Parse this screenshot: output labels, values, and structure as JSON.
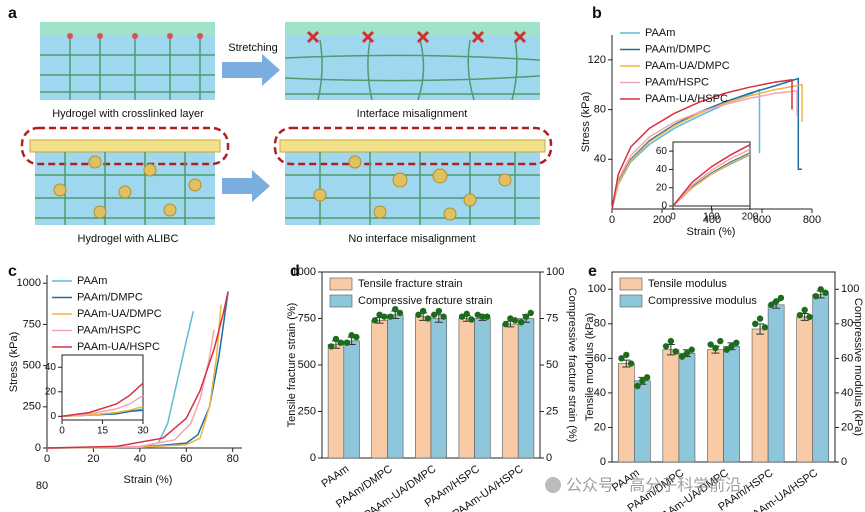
{
  "panel_a": {
    "panel": "a",
    "labels": [
      "Hydrogel with crosslinked layer",
      "Stretching",
      "Interface misalignment",
      "Hydrogel with ALIBC",
      "No interface misalignment"
    ]
  },
  "watermark": "公众号 · 高分子科学前沿",
  "chart_data": [
    {
      "type": "line",
      "panel": "b",
      "x_label": "Strain (%)",
      "y_label": "Stress (kPa)",
      "xlim": [
        0,
        800
      ],
      "xticks": [
        0,
        200,
        400,
        600,
        800
      ],
      "ylim": [
        0,
        140
      ],
      "yticks": [
        40,
        80,
        120
      ],
      "series": [
        {
          "name": "PAAm",
          "color": "#5bbcd6",
          "x": [
            0,
            25,
            75,
            150,
            250,
            350,
            450,
            550,
            590,
            590
          ],
          "y": [
            0,
            20,
            38,
            52,
            65,
            75,
            84,
            92,
            96,
            45
          ]
        },
        {
          "name": "PAAm/DMPC",
          "color": "#1f6ea6",
          "x": [
            0,
            25,
            75,
            150,
            250,
            350,
            450,
            550,
            650,
            745,
            745,
            760
          ],
          "y": [
            0,
            22,
            40,
            55,
            68,
            78,
            86,
            93,
            99,
            105,
            32,
            32
          ]
        },
        {
          "name": "PAAm-UA/DMPC",
          "color": "#f2b440",
          "x": [
            0,
            25,
            75,
            150,
            250,
            350,
            450,
            550,
            650,
            760,
            760
          ],
          "y": [
            0,
            21,
            39,
            54,
            67,
            77,
            85,
            91,
            96,
            100,
            70
          ]
        },
        {
          "name": "PAAm/HSPC",
          "color": "#f4a6b8",
          "x": [
            0,
            25,
            75,
            150,
            250,
            350,
            450,
            550,
            650,
            740,
            740
          ],
          "y": [
            0,
            24,
            43,
            58,
            70,
            78,
            84,
            89,
            93,
            95,
            75
          ]
        },
        {
          "name": "PAAm-UA/HSPC",
          "color": "#d8303e",
          "x": [
            0,
            25,
            75,
            150,
            250,
            350,
            450,
            550,
            650,
            720,
            720
          ],
          "y": [
            0,
            28,
            50,
            65,
            77,
            86,
            93,
            98,
            102,
            104,
            80
          ]
        }
      ],
      "inset": {
        "xlim": [
          0,
          200
        ],
        "xticks": [
          0,
          100,
          200
        ],
        "ylim": [
          0,
          70
        ],
        "yticks": [
          0,
          20,
          40,
          60
        ],
        "series": [
          {
            "color": "#5bbcd6",
            "x": [
              0,
              50,
              100,
              150,
              200
            ],
            "y": [
              0,
              20,
              35,
              46,
              56
            ]
          },
          {
            "color": "#1f6ea6",
            "x": [
              0,
              50,
              100,
              150,
              200
            ],
            "y": [
              0,
              21,
              36,
              48,
              58
            ]
          },
          {
            "color": "#f2b440",
            "x": [
              0,
              50,
              100,
              150,
              200
            ],
            "y": [
              0,
              20,
              35,
              47,
              57
            ]
          },
          {
            "color": "#f4a6b8",
            "x": [
              0,
              50,
              100,
              150,
              200
            ],
            "y": [
              0,
              23,
              39,
              52,
              62
            ]
          },
          {
            "color": "#d8303e",
            "x": [
              0,
              50,
              100,
              150,
              200
            ],
            "y": [
              0,
              26,
              43,
              56,
              67
            ]
          }
        ]
      }
    },
    {
      "type": "line",
      "panel": "c",
      "x_label": "Strain (%)",
      "y_label": "Stress (kPa)",
      "annotations": [
        "80"
      ],
      "xlim": [
        0,
        84
      ],
      "xticks": [
        0,
        20,
        40,
        60,
        80
      ],
      "ylim": [
        0,
        1050
      ],
      "yticks": [
        0,
        250,
        500,
        750,
        1000
      ],
      "series": [
        {
          "name": "PAAm",
          "color": "#5bbcd6",
          "x": [
            0,
            20,
            40,
            48,
            52,
            56,
            60,
            63
          ],
          "y": [
            0,
            2,
            8,
            30,
            150,
            400,
            650,
            830
          ]
        },
        {
          "name": "PAAm/DMPC",
          "color": "#1f6ea6",
          "x": [
            0,
            40,
            60,
            65,
            70,
            74,
            78
          ],
          "y": [
            0,
            5,
            30,
            80,
            250,
            550,
            950
          ]
        },
        {
          "name": "PAAm-UA/DMPC",
          "color": "#f2b440",
          "x": [
            0,
            40,
            60,
            66,
            70,
            73,
            75
          ],
          "y": [
            0,
            5,
            20,
            60,
            250,
            550,
            870
          ]
        },
        {
          "name": "PAAm/HSPC",
          "color": "#f4a6b8",
          "x": [
            0,
            40,
            55,
            62,
            66,
            70,
            72
          ],
          "y": [
            0,
            10,
            50,
            150,
            300,
            550,
            720
          ]
        },
        {
          "name": "PAAm-UA/HSPC",
          "color": "#d8303e",
          "x": [
            0,
            30,
            50,
            60,
            66,
            72,
            76,
            78
          ],
          "y": [
            0,
            10,
            60,
            180,
            350,
            600,
            820,
            950
          ]
        }
      ],
      "inset": {
        "xlim": [
          0,
          30
        ],
        "xticks": [
          0,
          15,
          30
        ],
        "ylim": [
          -3,
          50
        ],
        "yticks": [
          0,
          20,
          40
        ],
        "series": [
          {
            "color": "#5bbcd6",
            "x": [
              0,
              10,
              20,
              25,
              30
            ],
            "y": [
              0,
              1,
              3,
              4,
              6
            ]
          },
          {
            "color": "#1f6ea6",
            "x": [
              0,
              10,
              20,
              25,
              30
            ],
            "y": [
              0,
              1,
              2,
              4,
              5
            ]
          },
          {
            "color": "#f2b440",
            "x": [
              0,
              10,
              20,
              25,
              30
            ],
            "y": [
              0,
              1,
              3,
              5,
              8
            ]
          },
          {
            "color": "#f4a6b8",
            "x": [
              0,
              10,
              20,
              25,
              30
            ],
            "y": [
              0,
              2,
              6,
              10,
              17
            ]
          },
          {
            "color": "#d8303e",
            "x": [
              0,
              10,
              20,
              25,
              30
            ],
            "y": [
              0,
              3,
              10,
              17,
              27
            ]
          }
        ]
      }
    },
    {
      "type": "bar",
      "panel": "d",
      "y_label": "Tensile fracture strain (%)",
      "y2_label": "Compressive fracture strain (%)",
      "categories": [
        "PAAm",
        "PAAm/DMPC",
        "PAAm-UA/DMPC",
        "PAAm/HSPC",
        "PAAm-UA/HSPC"
      ],
      "ylim": [
        0,
        1000
      ],
      "yticks": [
        0,
        250,
        500,
        750,
        1000
      ],
      "y2lim": [
        0,
        100
      ],
      "y2ticks": [
        0,
        25,
        50,
        75,
        100
      ],
      "series": [
        {
          "name": "Tensile fracture strain",
          "color": "#f8cba6",
          "values": [
            610,
            740,
            760,
            750,
            720
          ],
          "errors": [
            20,
            15,
            20,
            15,
            15
          ],
          "points": [
            [
              600,
              640,
              620
            ],
            [
              740,
              770,
              760
            ],
            [
              770,
              790,
              750
            ],
            [
              760,
              775,
              745
            ],
            [
              720,
              750,
              740
            ]
          ]
        },
        {
          "name": "Compressive fracture strain",
          "color": "#8ec7dc",
          "axis": "y2",
          "values": [
            63,
            77,
            75,
            75,
            75
          ],
          "errors": [
            2,
            2,
            2,
            1,
            2
          ],
          "points": [
            [
              62,
              66,
              65
            ],
            [
              76,
              80,
              78
            ],
            [
              77,
              79,
              76
            ],
            [
              77,
              76,
              76
            ],
            [
              73,
              76,
              78
            ]
          ]
        }
      ]
    },
    {
      "type": "bar",
      "panel": "e",
      "y_label": "Tensile modulus (kPa)",
      "y2_label": "Compressive modulus (kPa)",
      "categories": [
        "PAAm",
        "PAAm/DMPC",
        "PAAm-UA/DMPC",
        "PAAm/HSPC",
        "PAAm-UA/HSPC"
      ],
      "ylim": [
        0,
        110
      ],
      "yticks": [
        0,
        20,
        40,
        60,
        80,
        100
      ],
      "y2lim": [
        0,
        110
      ],
      "y2ticks": [
        0,
        20,
        40,
        60,
        80,
        100
      ],
      "series": [
        {
          "name": "Tensile modulus",
          "color": "#f8cba6",
          "values": [
            57,
            65,
            65,
            77,
            84
          ],
          "errors": [
            2,
            3,
            2,
            3,
            2
          ],
          "points": [
            [
              60,
              62,
              57
            ],
            [
              67,
              70,
              64
            ],
            [
              68,
              66,
              70
            ],
            [
              80,
              83,
              78
            ],
            [
              85,
              88,
              84
            ]
          ]
        },
        {
          "name": "Compressive modulus",
          "color": "#8ec7dc",
          "axis": "y2",
          "values": [
            47,
            63,
            67,
            91,
            97
          ],
          "errors": [
            2,
            2,
            2,
            2,
            2
          ],
          "points": [
            [
              44,
              47,
              49
            ],
            [
              61,
              63,
              65
            ],
            [
              65,
              67,
              69
            ],
            [
              91,
              93,
              95
            ],
            [
              96,
              100,
              98
            ]
          ]
        }
      ]
    }
  ]
}
